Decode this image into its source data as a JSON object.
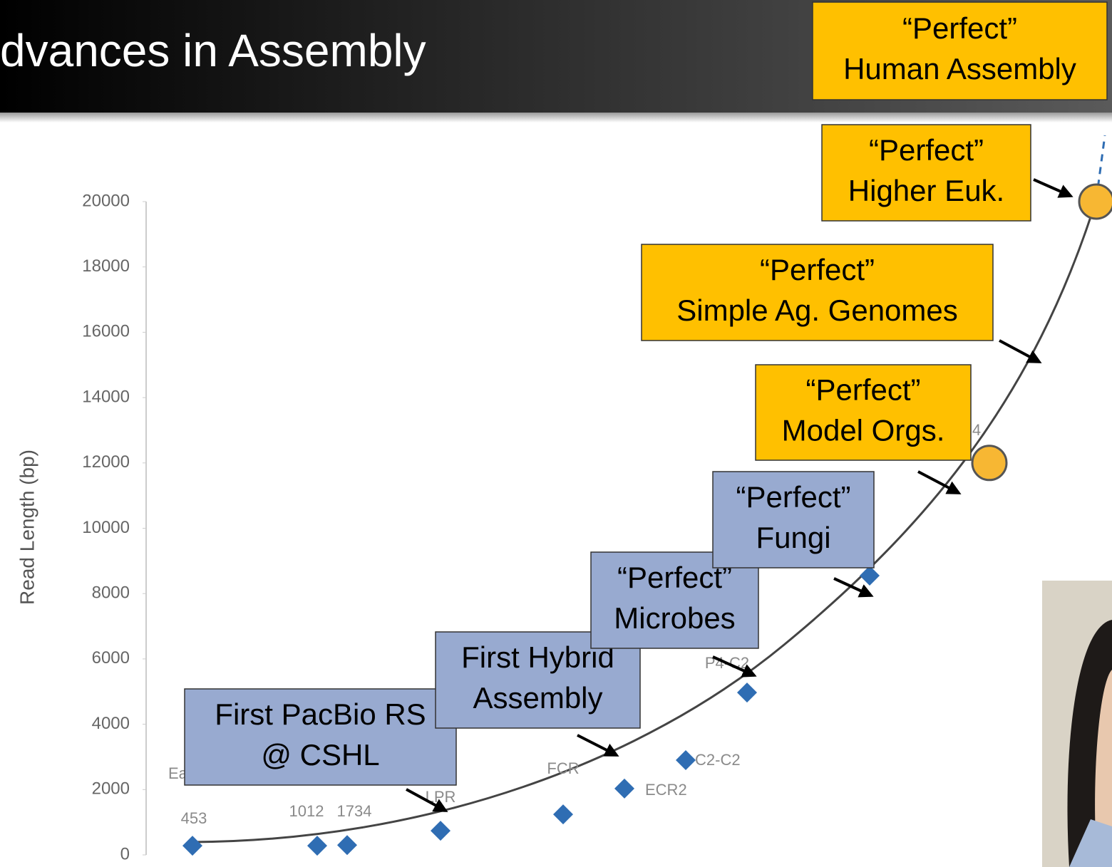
{
  "slide_title": "dvances in Assembly",
  "chart_data": {
    "type": "scatter",
    "y_label": "Read Length (bp)",
    "ylim": [
      0,
      20000
    ],
    "yticks": [
      0,
      2000,
      4000,
      6000,
      8000,
      10000,
      12000,
      14000,
      16000,
      18000,
      20000
    ],
    "categories": [
      "453",
      "1012",
      "1734",
      "LPR",
      "FCR",
      "ECR2",
      "C2-C2",
      "P4-C2",
      null,
      "4",
      null
    ],
    "partial_labels": [
      "Ea"
    ],
    "series": [
      {
        "marker": "diamond",
        "color": "#2f6db3",
        "values": [
          280,
          280,
          300,
          740,
          1240,
          2030,
          2900,
          4970,
          8550,
          null,
          null
        ]
      },
      {
        "marker": "circle",
        "color": "#f7b733",
        "values": [
          null,
          null,
          null,
          null,
          null,
          null,
          null,
          null,
          null,
          12000,
          20000
        ]
      }
    ],
    "callouts": [
      {
        "style": "blue",
        "lines": [
          "First PacBio RS",
          "@ CSHL"
        ]
      },
      {
        "style": "blue",
        "lines": [
          "First Hybrid",
          "Assembly"
        ]
      },
      {
        "style": "blue",
        "lines": [
          "“Perfect”",
          "Microbes"
        ]
      },
      {
        "style": "blue",
        "lines": [
          "“Perfect”",
          "Fungi"
        ]
      },
      {
        "style": "yellow",
        "lines": [
          "“Perfect”",
          "Model Orgs."
        ]
      },
      {
        "style": "yellow",
        "lines": [
          "“Perfect”",
          "Simple Ag. Genomes"
        ]
      },
      {
        "style": "yellow",
        "lines": [
          "“Perfect”",
          "Higher Euk."
        ]
      },
      {
        "style": "yellow",
        "lines": [
          "“Perfect”",
          "Human Assembly"
        ]
      }
    ]
  }
}
